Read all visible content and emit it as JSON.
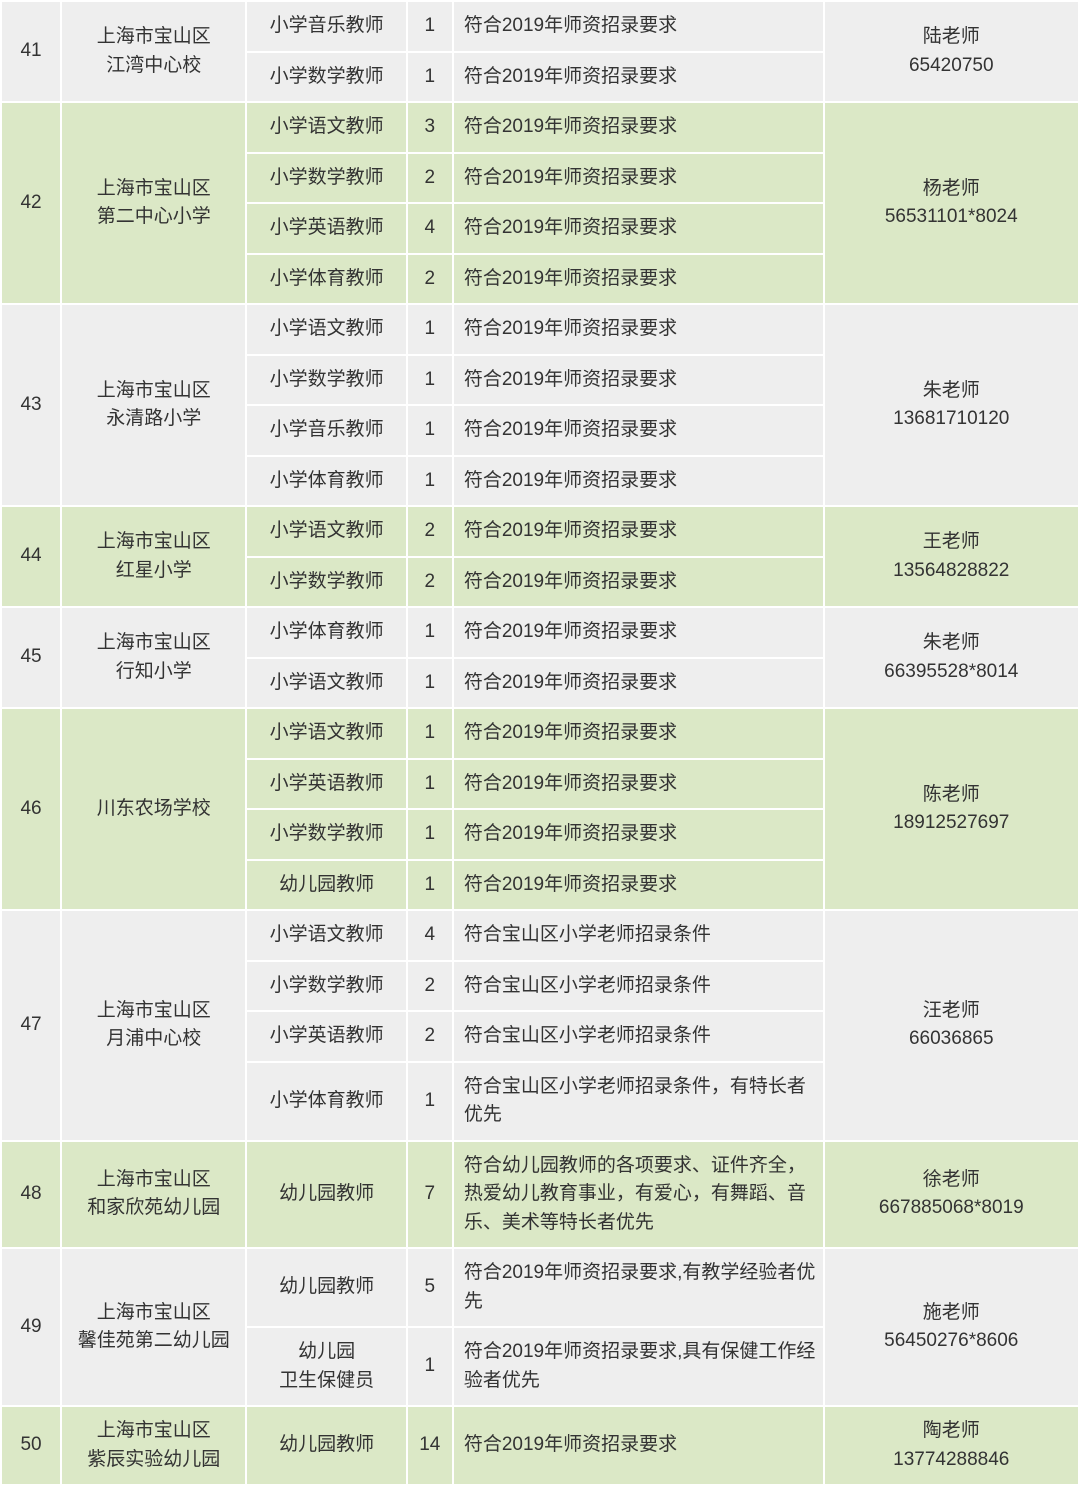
{
  "rows": [
    {
      "id": "41",
      "school": "上海市宝山区\n江湾中心校",
      "contact": "陆老师\n65420750",
      "tone": "gray",
      "positions": [
        {
          "title": "小学音乐教师",
          "count": "1",
          "req": "符合2019年师资招录要求"
        },
        {
          "title": "小学数学教师",
          "count": "1",
          "req": "符合2019年师资招录要求"
        }
      ]
    },
    {
      "id": "42",
      "school": "上海市宝山区\n第二中心小学",
      "contact": "杨老师\n56531101*8024",
      "tone": "green",
      "positions": [
        {
          "title": "小学语文教师",
          "count": "3",
          "req": "符合2019年师资招录要求"
        },
        {
          "title": "小学数学教师",
          "count": "2",
          "req": "符合2019年师资招录要求"
        },
        {
          "title": "小学英语教师",
          "count": "4",
          "req": "符合2019年师资招录要求"
        },
        {
          "title": "小学体育教师",
          "count": "2",
          "req": "符合2019年师资招录要求"
        }
      ]
    },
    {
      "id": "43",
      "school": "上海市宝山区\n永清路小学",
      "contact": "朱老师\n13681710120",
      "tone": "gray",
      "positions": [
        {
          "title": "小学语文教师",
          "count": "1",
          "req": "符合2019年师资招录要求"
        },
        {
          "title": "小学数学教师",
          "count": "1",
          "req": "符合2019年师资招录要求"
        },
        {
          "title": "小学音乐教师",
          "count": "1",
          "req": "符合2019年师资招录要求"
        },
        {
          "title": "小学体育教师",
          "count": "1",
          "req": "符合2019年师资招录要求"
        }
      ]
    },
    {
      "id": "44",
      "school": "上海市宝山区\n红星小学",
      "contact": "王老师\n13564828822",
      "tone": "green",
      "positions": [
        {
          "title": "小学语文教师",
          "count": "2",
          "req": "符合2019年师资招录要求"
        },
        {
          "title": "小学数学教师",
          "count": "2",
          "req": "符合2019年师资招录要求"
        }
      ]
    },
    {
      "id": "45",
      "school": "上海市宝山区\n行知小学",
      "contact": "朱老师\n66395528*8014",
      "tone": "gray",
      "positions": [
        {
          "title": "小学体育教师",
          "count": "1",
          "req": "符合2019年师资招录要求"
        },
        {
          "title": "小学语文教师",
          "count": "1",
          "req": "符合2019年师资招录要求"
        }
      ]
    },
    {
      "id": "46",
      "school": "川东农场学校",
      "contact": "陈老师\n18912527697",
      "tone": "green",
      "positions": [
        {
          "title": "小学语文教师",
          "count": "1",
          "req": "符合2019年师资招录要求"
        },
        {
          "title": "小学英语教师",
          "count": "1",
          "req": "符合2019年师资招录要求"
        },
        {
          "title": "小学数学教师",
          "count": "1",
          "req": "符合2019年师资招录要求"
        },
        {
          "title": "幼儿园教师",
          "count": "1",
          "req": "符合2019年师资招录要求"
        }
      ]
    },
    {
      "id": "47",
      "school": "上海市宝山区\n月浦中心校",
      "contact": "汪老师\n66036865",
      "tone": "gray",
      "positions": [
        {
          "title": "小学语文教师",
          "count": "4",
          "req": "符合宝山区小学老师招录条件"
        },
        {
          "title": "小学数学教师",
          "count": "2",
          "req": "符合宝山区小学老师招录条件"
        },
        {
          "title": "小学英语教师",
          "count": "2",
          "req": "符合宝山区小学老师招录条件"
        },
        {
          "title": "小学体育教师",
          "count": "1",
          "req": "符合宝山区小学老师招录条件，有特长者优先"
        }
      ]
    },
    {
      "id": "48",
      "school": "上海市宝山区\n和家欣苑幼儿园",
      "contact": "徐老师\n667885068*8019",
      "tone": "green",
      "positions": [
        {
          "title": "幼儿园教师",
          "count": "7",
          "req": "符合幼儿园教师的各项要求、证件齐全，热爱幼儿教育事业，有爱心，有舞蹈、音乐、美术等特长者优先"
        }
      ]
    },
    {
      "id": "49",
      "school": "上海市宝山区\n馨佳苑第二幼儿园",
      "contact": "施老师\n56450276*8606",
      "tone": "gray",
      "positions": [
        {
          "title": "幼儿园教师",
          "count": "5",
          "req": "符合2019年师资招录要求,有教学经验者优先"
        },
        {
          "title": "幼儿园\n卫生保健员",
          "count": "1",
          "req": "符合2019年师资招录要求,具有保健工作经验者优先"
        }
      ]
    },
    {
      "id": "50",
      "school": "上海市宝山区\n紫辰实验幼儿园",
      "contact": "陶老师\n13774288846",
      "tone": "green",
      "positions": [
        {
          "title": "幼儿园教师",
          "count": "14",
          "req": "符合2019年师资招录要求"
        }
      ]
    }
  ],
  "columns": {
    "id_width": 60,
    "school_width": 185,
    "position_width": 160,
    "count_width": 46,
    "req_width": 370,
    "contact_width": 255
  },
  "colors": {
    "gray": "#eeeeee",
    "green": "#dbe8c6",
    "border": "#ffffff",
    "text": "#333333"
  },
  "font_size": 19
}
